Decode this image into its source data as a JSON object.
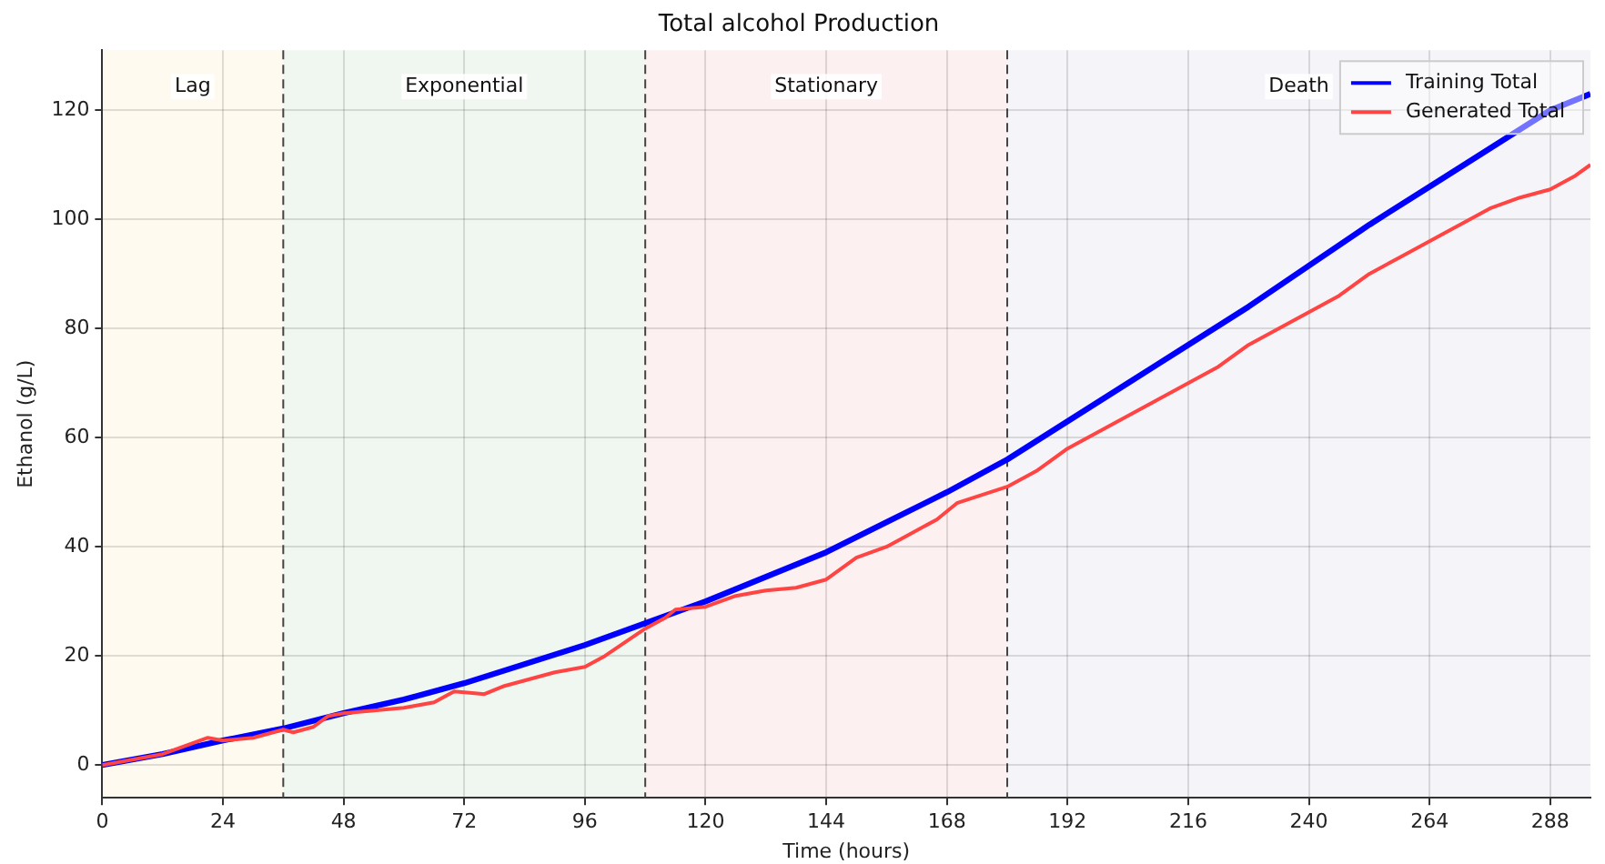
{
  "chart_data": {
    "type": "line",
    "title": "Total alcohol Production",
    "xlabel": "Time (hours)",
    "ylabel": "Ethanol (g/L)",
    "xlim": [
      0,
      296
    ],
    "xticks": [
      0,
      24,
      48,
      72,
      96,
      120,
      144,
      168,
      192,
      216,
      240,
      264,
      288
    ],
    "ylim": [
      -6,
      131
    ],
    "yticks": [
      0,
      20,
      40,
      60,
      80,
      100,
      120
    ],
    "grid": true,
    "legend": "top right",
    "marker": "none",
    "line_style": "solid",
    "series": [
      {
        "name": "Training Total",
        "color": "#0000ff",
        "x": [
          0,
          12,
          24,
          36,
          48,
          60,
          72,
          84,
          96,
          108,
          120,
          132,
          144,
          156,
          168,
          180,
          192,
          204,
          216,
          228,
          240,
          252,
          264,
          276,
          288,
          296
        ],
        "values": [
          0,
          2,
          4.5,
          6.7,
          9.5,
          12,
          15,
          18.5,
          22,
          26,
          30,
          34.5,
          39,
          44.5,
          50,
          56,
          63,
          70,
          77,
          84,
          91.5,
          99,
          106,
          113,
          120,
          123
        ]
      },
      {
        "name": "Generated Total",
        "color": "#ff4444",
        "x": [
          0,
          6,
          12,
          18,
          21,
          24,
          30,
          36,
          38,
          42,
          45,
          48,
          54,
          60,
          66,
          70,
          76,
          80,
          84,
          90,
          96,
          100,
          104,
          108,
          112,
          114,
          120,
          126,
          132,
          138,
          144,
          150,
          156,
          160,
          166,
          170,
          180,
          186,
          192,
          198,
          204,
          210,
          216,
          222,
          228,
          234,
          240,
          246,
          252,
          258,
          264,
          270,
          276,
          282,
          288,
          293,
          296
        ],
        "values": [
          0,
          1,
          2,
          4,
          5,
          4.5,
          5,
          6.5,
          6,
          7,
          9,
          9.5,
          10,
          10.5,
          11.5,
          13.5,
          13,
          14.5,
          15.5,
          17,
          18,
          20,
          22.5,
          25,
          27,
          28.5,
          29,
          31,
          32,
          32.5,
          34,
          38,
          40,
          42,
          45,
          48,
          51,
          54,
          58,
          61,
          64,
          67,
          70,
          73,
          77,
          80,
          83,
          86,
          90,
          93,
          96,
          99,
          102,
          104,
          105.5,
          108,
          110
        ]
      }
    ],
    "bands": [
      {
        "axis": "x",
        "from": 0,
        "to": 36,
        "label": "Lag",
        "color": "#fffaf0"
      },
      {
        "axis": "x",
        "from": 36,
        "to": 108,
        "label": "Exponential",
        "color": "#f0f7f0"
      },
      {
        "axis": "x",
        "from": 108,
        "to": 180,
        "label": "Stationary",
        "color": "#fdf0f0"
      },
      {
        "axis": "x",
        "from": 180,
        "to": 296,
        "label": "Death",
        "color": "#f5f4f8"
      }
    ],
    "ref_lines": [
      {
        "axis": "x",
        "value": 36,
        "color": "#444444",
        "line_style": "dashed"
      },
      {
        "axis": "x",
        "value": 108,
        "color": "#444444",
        "line_style": "dashed"
      },
      {
        "axis": "x",
        "value": 180,
        "color": "#444444",
        "line_style": "dashed"
      }
    ]
  }
}
